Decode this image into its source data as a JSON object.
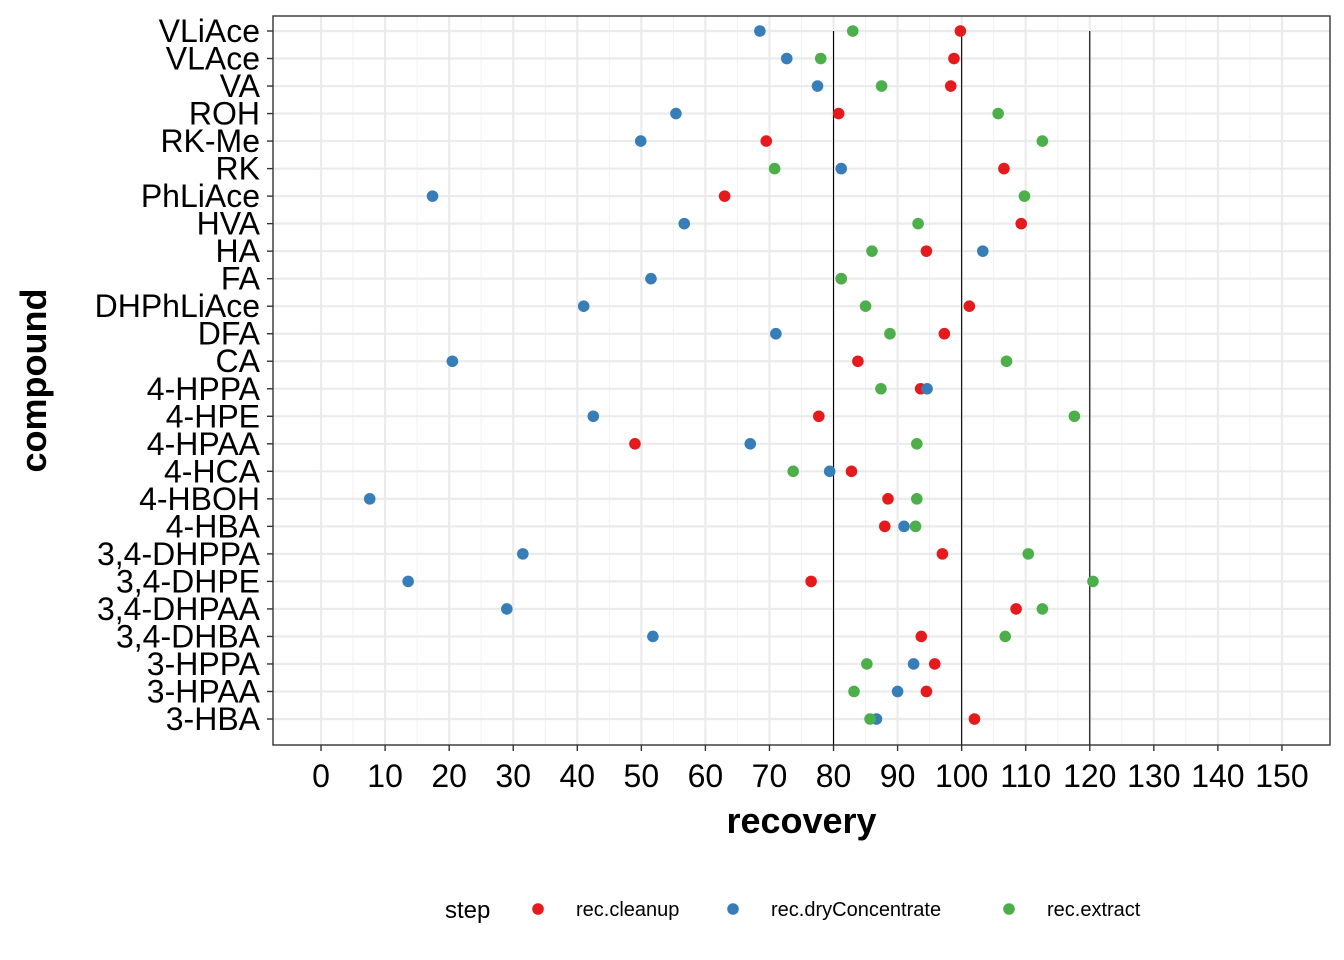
{
  "chart_data": {
    "type": "scatter",
    "xlabel": "recovery",
    "ylabel": "compound",
    "xlim": [
      -7.5,
      157.5
    ],
    "x_ticks": [
      "0",
      "10",
      "20",
      "30",
      "40",
      "50",
      "60",
      "70",
      "80",
      "90",
      "100",
      "110",
      "120",
      "130",
      "140",
      "150"
    ],
    "reference_lines": [
      80,
      100,
      120
    ],
    "grid": true,
    "legend": {
      "title": "step",
      "position": "bottom"
    },
    "categories": [
      "3-HBA",
      "3-HPAA",
      "3-HPPA",
      "3,4-DHBA",
      "3,4-DHPAA",
      "3,4-DHPE",
      "3,4-DHPPA",
      "4-HBA",
      "4-HBOH",
      "4-HCA",
      "4-HPAA",
      "4-HPE",
      "4-HPPA",
      "CA",
      "DFA",
      "DHPhLiAce",
      "FA",
      "HA",
      "HVA",
      "PhLiAce",
      "RK",
      "RK-Me",
      "ROH",
      "VA",
      "VLAce",
      "VLiAce"
    ],
    "series": [
      {
        "name": "rec.cleanup",
        "color": "#e41a1c",
        "values": [
          102,
          94.5,
          95.8,
          93.7,
          108.5,
          76.5,
          97,
          88,
          88.5,
          82.8,
          49,
          77.7,
          93.6,
          83.8,
          97.3,
          101.2,
          81.2,
          94.5,
          109.3,
          63,
          106.6,
          69.5,
          80.8,
          98.3,
          98.8,
          99.8
        ]
      },
      {
        "name": "rec.dryConcentrate",
        "color": "#377eb8",
        "values": [
          86.7,
          90,
          92.5,
          51.8,
          29,
          13.6,
          31.5,
          91,
          7.6,
          79.4,
          67,
          42.5,
          94.6,
          20.5,
          71,
          41,
          51.5,
          103.3,
          56.7,
          17.4,
          81.2,
          49.9,
          55.4,
          77.5,
          72.7,
          68.5
        ]
      },
      {
        "name": "rec.extract",
        "color": "#4daf4a",
        "values": [
          85.7,
          83.2,
          85.2,
          106.8,
          112.6,
          120.5,
          110.4,
          92.8,
          93,
          73.7,
          93,
          117.6,
          87.4,
          107,
          88.8,
          85,
          81.2,
          86,
          93.2,
          109.8,
          70.8,
          112.6,
          105.7,
          87.5,
          78,
          83
        ]
      }
    ]
  }
}
